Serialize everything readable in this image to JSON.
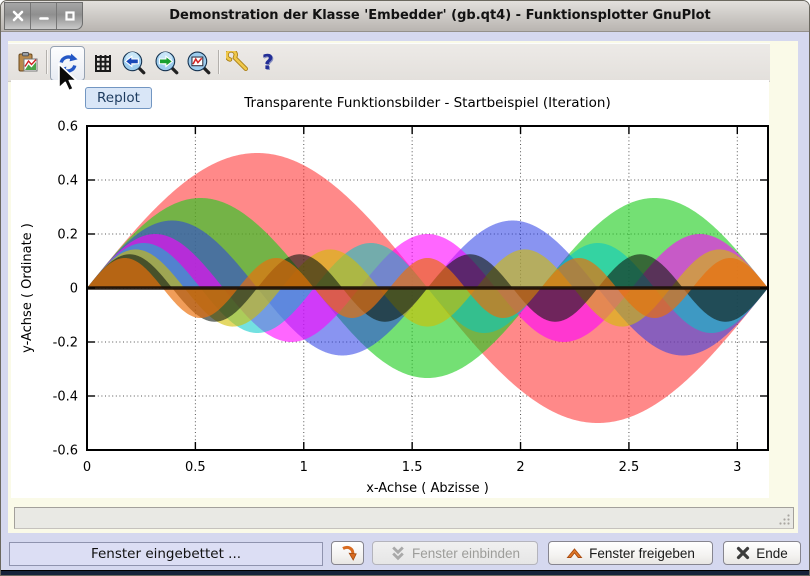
{
  "window": {
    "title": "Demonstration der Klasse 'Embedder' (gb.qt4) - Funktionsplotter GnuPlot",
    "controls": [
      {
        "id": "close",
        "glyph": "x"
      },
      {
        "id": "minimize",
        "glyph": "-"
      },
      {
        "id": "maximize",
        "glyph": "square"
      }
    ]
  },
  "toolbar": {
    "items": [
      {
        "id": "copy-plot",
        "icon": "clipboard-chart-icon"
      },
      {
        "id": "replot",
        "icon": "replot-icon",
        "active": true
      },
      {
        "id": "grid",
        "icon": "grid-icon"
      },
      {
        "id": "zoom-previous",
        "icon": "zoom-previous-icon"
      },
      {
        "id": "zoom-next",
        "icon": "zoom-next-icon"
      },
      {
        "id": "unzoom",
        "icon": "unzoom-icon"
      },
      {
        "id": "options",
        "icon": "wrench-icon"
      },
      {
        "id": "help",
        "icon": "help-icon"
      }
    ],
    "tooltip": "Replot"
  },
  "chart_data": {
    "type": "area",
    "title": "Transparente Funktionsbilder - Startbeispiel (Iteration)",
    "xlabel": "x-Achse ( Abzisse )",
    "ylabel": "y-Achse ( Ordinate )",
    "xlim": [
      0,
      3.14159265
    ],
    "ylim": [
      -0.6,
      0.6
    ],
    "x_ticks": {
      "values": [
        0,
        0.5,
        1,
        1.5,
        2,
        2.5,
        3
      ],
      "labels": [
        "0",
        "0.5",
        "1",
        "1.5",
        "2",
        "2.5",
        "3"
      ]
    },
    "y_ticks": {
      "values": [
        -0.6,
        -0.4,
        -0.2,
        0,
        0.2,
        0.4,
        0.6
      ],
      "labels": [
        "-0.6",
        "-0.4",
        "-0.2",
        "0",
        "0.2",
        "0.4",
        "0.6"
      ]
    },
    "grid": true,
    "legend": "none",
    "formula": "y = sin(n*x)/n, filled to y=0 with transparency, x in [0, pi]",
    "series": [
      {
        "name": "sin(2x)/2",
        "n": 2,
        "color": "rgba(255,40,40,0.55)"
      },
      {
        "name": "sin(3x)/3",
        "n": 3,
        "color": "rgba(30,205,30,0.62)"
      },
      {
        "name": "sin(4x)/4",
        "n": 4,
        "color": "rgba(40,60,230,0.55)"
      },
      {
        "name": "sin(5x)/5",
        "n": 5,
        "color": "rgba(255,0,255,0.6)"
      },
      {
        "name": "sin(6x)/6",
        "n": 6,
        "color": "rgba(0,200,200,0.55)"
      },
      {
        "name": "sin(7x)/7",
        "n": 7,
        "color": "rgba(210,190,0,0.6)"
      },
      {
        "name": "sin(8x)/8",
        "n": 8,
        "color": "rgba(15,25,15,0.6)"
      },
      {
        "name": "sin(9x)/9",
        "n": 9,
        "color": "rgba(235,110,10,0.68)"
      }
    ],
    "zero_line_color": "#1c1006"
  },
  "statusbar": {
    "text": ""
  },
  "bottom": {
    "status_label": "Fenster eingebettet ...",
    "buttons": [
      {
        "id": "reembed",
        "label": "",
        "icon": "curved-arrow-icon",
        "disabled": false
      },
      {
        "id": "einbinden",
        "label": "Fenster einbinden",
        "icon": "chevron-double-down-icon",
        "disabled": true
      },
      {
        "id": "freigeben",
        "label": "Fenster freigeben",
        "icon": "chevron-up-icon",
        "disabled": false
      },
      {
        "id": "ende",
        "label": "Ende",
        "icon": "close-x-icon",
        "disabled": false
      }
    ]
  }
}
